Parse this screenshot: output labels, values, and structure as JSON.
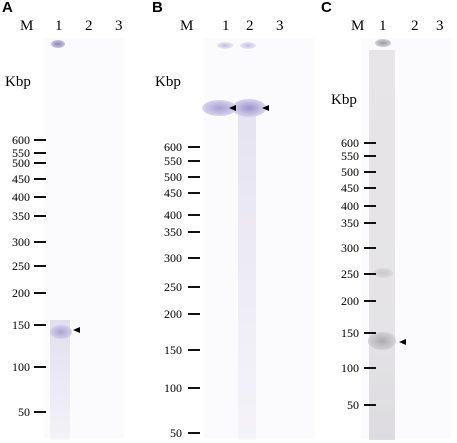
{
  "panels": {
    "a": {
      "letter": "A",
      "lanes": [
        "M",
        "1",
        "2",
        "3"
      ],
      "unit": "Kbp",
      "ladder": [
        "600",
        "550",
        "500",
        "450",
        "400",
        "350",
        "300",
        "250",
        "200",
        "150",
        "100",
        "50"
      ]
    },
    "b": {
      "letter": "B",
      "lanes": [
        "M",
        "1",
        "2",
        "3"
      ],
      "unit": "Kbp",
      "ladder": [
        "600",
        "550",
        "500",
        "450",
        "400",
        "350",
        "300",
        "250",
        "200",
        "150",
        "100",
        "50"
      ]
    },
    "c": {
      "letter": "C",
      "lanes": [
        "M",
        "1",
        "2",
        "3"
      ],
      "unit": "Kbp",
      "ladder": [
        "600",
        "550",
        "500",
        "450",
        "400",
        "350",
        "300",
        "250",
        "200",
        "150",
        "100",
        "50"
      ]
    }
  },
  "colors": {
    "gel_background": "#fbfafc",
    "band_purple": "#b8b2dd",
    "arrow": "#000000"
  }
}
